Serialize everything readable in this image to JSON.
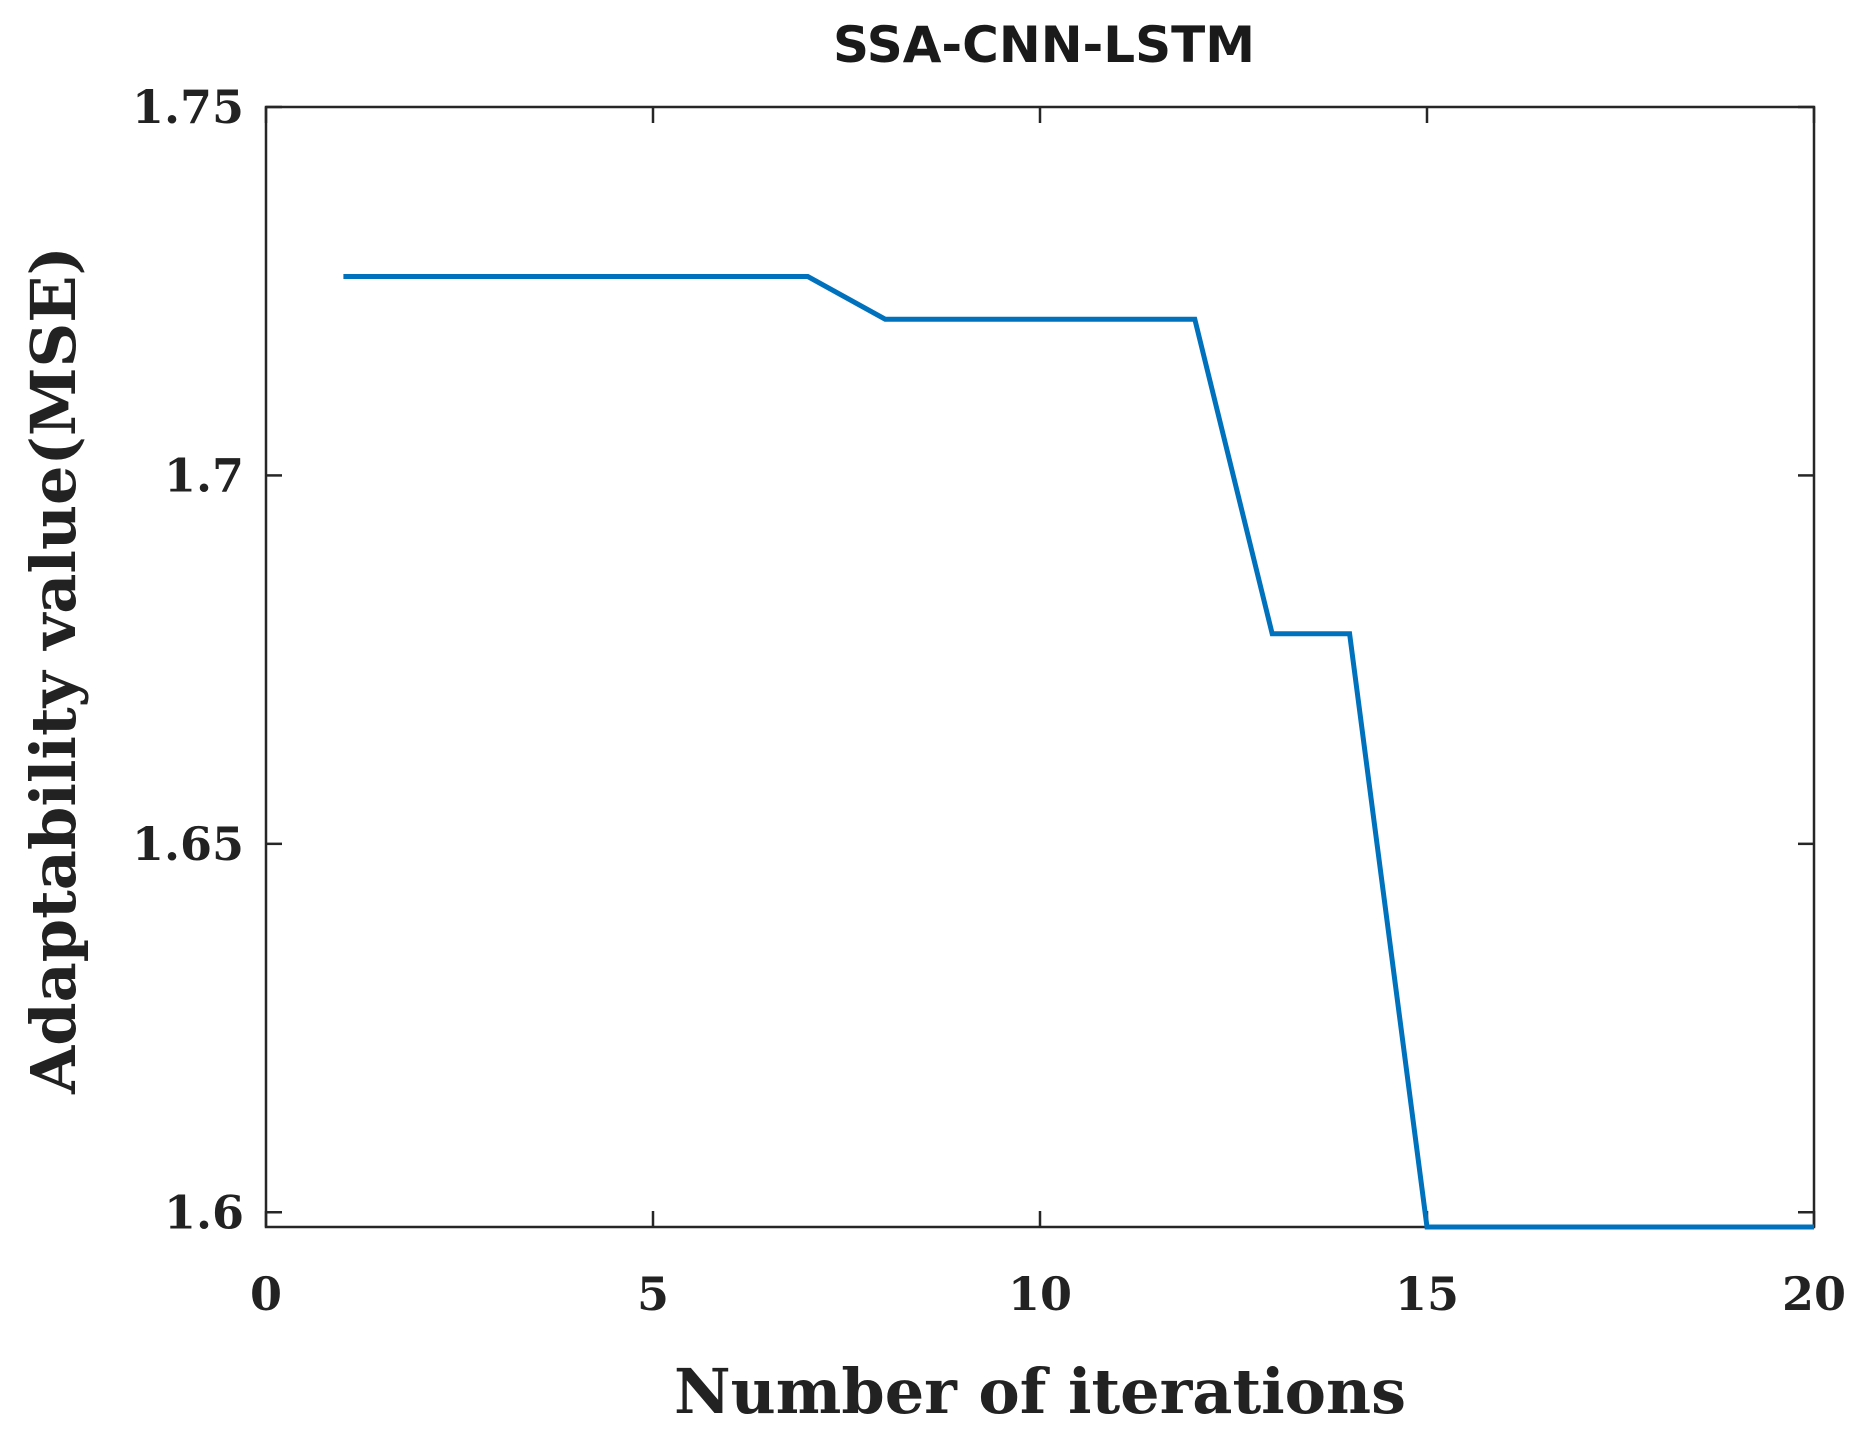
{
  "chart_data": {
    "type": "line",
    "title": "SSA-CNN-LSTM",
    "xlabel": "Number of iterations",
    "ylabel": "Adaptability value(MSE)",
    "xlim": [
      0,
      20
    ],
    "ylim": [
      1.598,
      1.75
    ],
    "xticks": [
      0,
      5,
      10,
      15,
      20
    ],
    "xtick_labels": [
      "0",
      "5",
      "10",
      "15",
      "20"
    ],
    "yticks": [
      1.6,
      1.65,
      1.7,
      1.75
    ],
    "ytick_labels": [
      "1.6",
      "1.65",
      "1.7",
      "1.75"
    ],
    "grid": false,
    "series": [
      {
        "color": "#0072BD",
        "x": [
          1,
          2,
          3,
          4,
          5,
          6,
          7,
          8,
          9,
          10,
          11,
          12,
          13,
          14,
          15,
          16,
          17,
          18,
          19,
          20
        ],
        "y": [
          1.727,
          1.727,
          1.727,
          1.727,
          1.727,
          1.727,
          1.727,
          1.7212,
          1.7212,
          1.7212,
          1.7212,
          1.7212,
          1.6785,
          1.6785,
          1.598,
          1.598,
          1.598,
          1.598,
          1.598,
          1.598
        ]
      }
    ]
  }
}
